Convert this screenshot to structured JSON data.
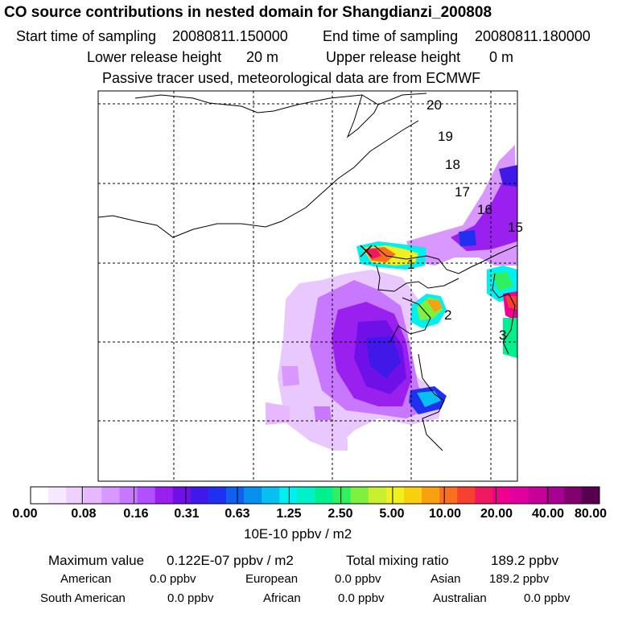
{
  "title": "CO  source contributions in nested domain for Shangdianzi_200808",
  "sampling": {
    "start_label": "Start time of sampling",
    "start_value": "20080811.150000",
    "end_label": "End time of sampling",
    "end_value": "20080811.180000"
  },
  "release": {
    "lower_label": "Lower release height",
    "lower_value": "20 m",
    "upper_label": "Upper release height",
    "upper_value": "0 m"
  },
  "note": "Passive tracer used, meteorological data are from ECMWF",
  "map": {
    "trajectory_labels": [
      "20",
      "19",
      "18",
      "17",
      "16",
      "15",
      "1",
      "2",
      "3"
    ]
  },
  "colorbar": {
    "colors": [
      "#ffffff",
      "#f8e8ff",
      "#f0d0ff",
      "#e8b8ff",
      "#d898ff",
      "#c878ff",
      "#b050ff",
      "#9a20f0",
      "#7010e8",
      "#4018e8",
      "#2030f0",
      "#1060f0",
      "#0890f0",
      "#08c0f0",
      "#00f0f0",
      "#00f0c8",
      "#00f090",
      "#30f060",
      "#80f040",
      "#c8f030",
      "#f0f020",
      "#f8d010",
      "#f8a010",
      "#f87020",
      "#f84030",
      "#f01860",
      "#f00090",
      "#e000a0",
      "#c80098",
      "#a80090",
      "#800070",
      "#580050"
    ],
    "ticks": [
      "0.00",
      "0.08",
      "0.16",
      "0.31",
      "0.63",
      "1.25",
      "2.50",
      "5.00",
      "10.00",
      "20.00",
      "40.00",
      "80.00"
    ],
    "units": "10E-10 ppbv / m2"
  },
  "stats": {
    "max_label": "Maximum value",
    "max_value": "0.122E-07 ppbv / m2",
    "total_label": "Total mixing ratio",
    "total_value": "189.2 ppbv",
    "regions": [
      {
        "name": "American",
        "value": "0.0 ppbv"
      },
      {
        "name": "European",
        "value": "0.0 ppbv"
      },
      {
        "name": "Asian",
        "value": "189.2 ppbv"
      },
      {
        "name": "South American",
        "value": "0.0 ppbv"
      },
      {
        "name": "African",
        "value": "0.0 ppbv"
      },
      {
        "name": "Australian",
        "value": "0.0 ppbv"
      }
    ]
  }
}
